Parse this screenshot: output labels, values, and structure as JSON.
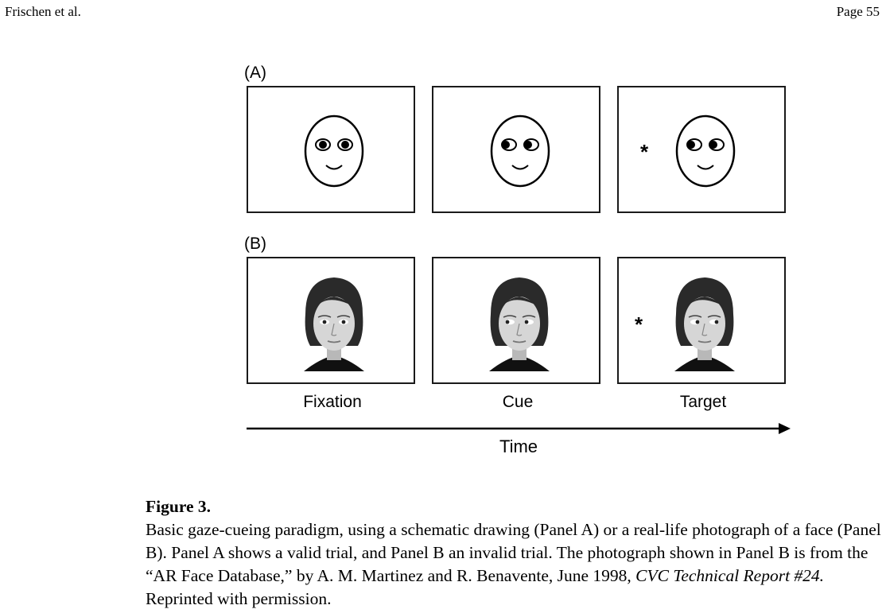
{
  "header": {
    "left": "Frischen et al.",
    "right": "Page 55"
  },
  "figure": {
    "panel_a_label": "(A)",
    "panel_b_label": "(B)",
    "columns": [
      "Fixation",
      "Cue",
      "Target"
    ],
    "target_symbol": "*",
    "axis_label": "Time"
  },
  "caption": {
    "title": "Figure 3.",
    "text_part1": "Basic gaze-cueing paradigm, using a schematic drawing (Panel A) or a real-life photograph of a face (Panel B). Panel A shows a valid trial, and Panel B an invalid trial. The photograph shown in Panel B is from the “AR Face Database,” by A. M. Martinez and R. Benavente, June 1998, ",
    "italic_part": "CVC Technical Report #24.",
    "text_part2": " Reprinted with permission."
  }
}
